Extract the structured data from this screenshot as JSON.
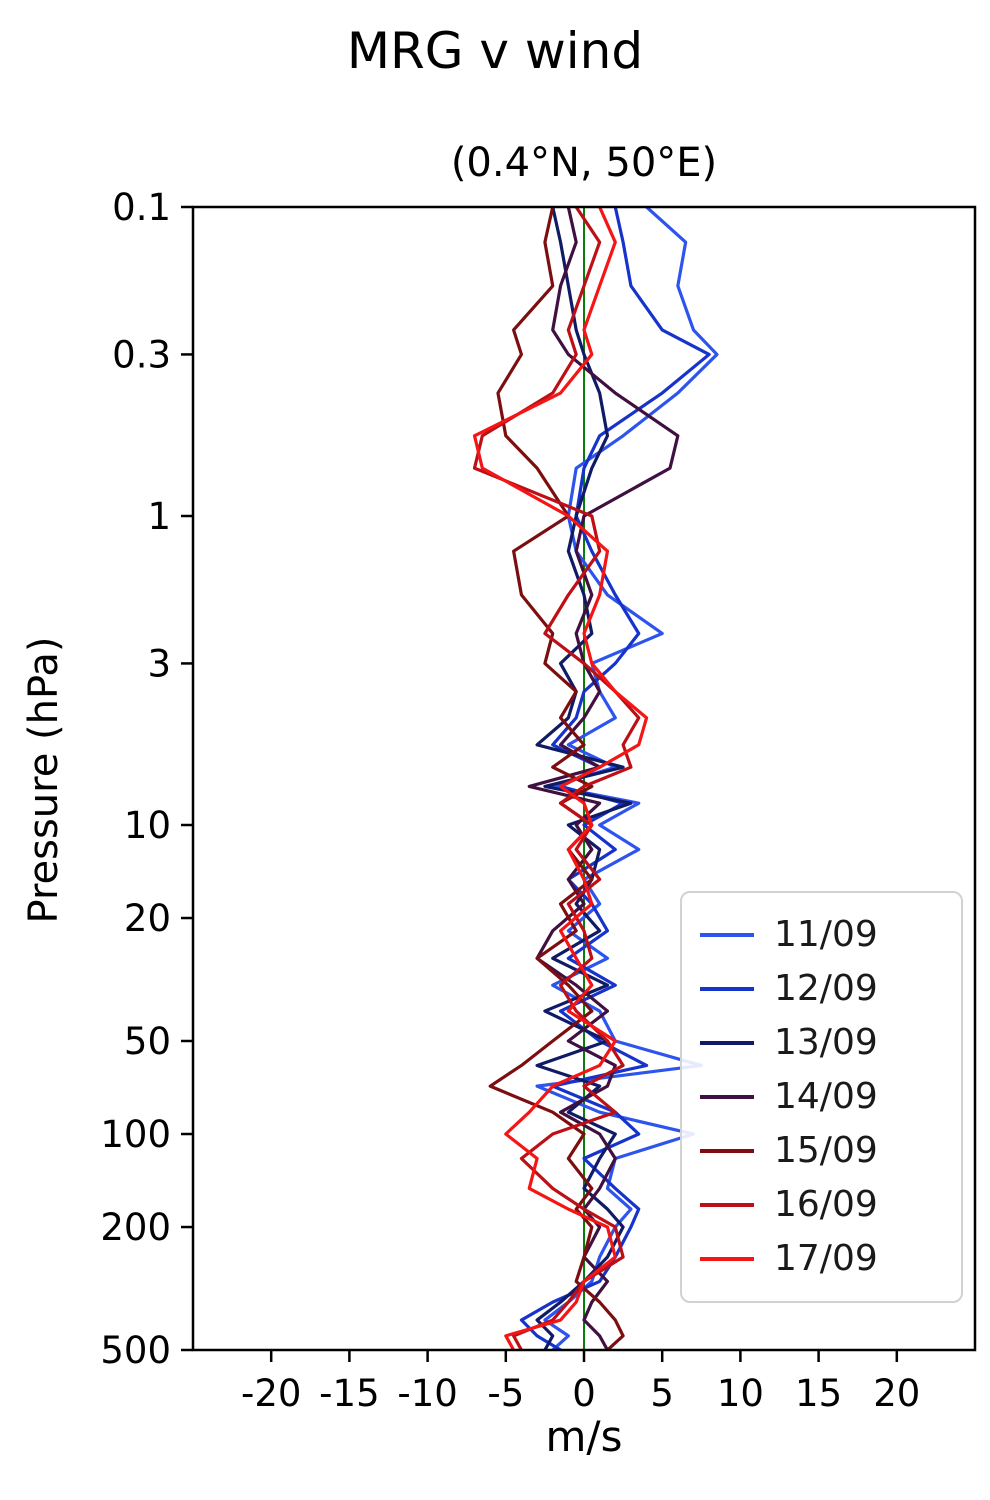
{
  "chart_data": {
    "type": "line",
    "title": "MRG v wind",
    "subtitle": "(0.4°N, 50°E)",
    "xlabel": "m/s",
    "ylabel": "Pressure (hPa)",
    "x_axis": {
      "lim": [
        -25,
        25
      ],
      "ticks": [
        -20,
        -15,
        -10,
        -5,
        0,
        5,
        10,
        15,
        20
      ],
      "tick_labels": [
        "-20",
        "-15",
        "-10",
        "-5",
        "0",
        "5",
        "10",
        "15",
        "20"
      ]
    },
    "y_axis": {
      "scale": "log",
      "lim": [
        0.1,
        500
      ],
      "ticks": [
        0.1,
        0.3,
        1,
        3,
        10,
        20,
        50,
        100,
        200,
        500
      ],
      "tick_labels": [
        "0.1",
        "0.3",
        "1",
        "3",
        "10",
        "20",
        "50",
        "100",
        "200",
        "500"
      ],
      "direction": "increasing-downward"
    },
    "reference_line": {
      "x": 0,
      "color": "#0b7d0b"
    },
    "grid": false,
    "legend": {
      "position": "center-right",
      "labels": [
        "11/09",
        "12/09",
        "13/09",
        "14/09",
        "15/09",
        "16/09",
        "17/09"
      ]
    },
    "pressure_levels": [
      0.1,
      0.13,
      0.18,
      0.25,
      0.3,
      0.4,
      0.55,
      0.7,
      1.0,
      1.3,
      1.8,
      2.4,
      3.0,
      3.7,
      4.5,
      5.5,
      6.5,
      7.5,
      8.5,
      10,
      12,
      15,
      18,
      22,
      27,
      33,
      40,
      50,
      60,
      70,
      85,
      100,
      120,
      150,
      175,
      200,
      250,
      300,
      350,
      400,
      450,
      500
    ],
    "series": [
      {
        "name": "11/09",
        "color": "#2e54ee",
        "values": [
          4.0,
          6.5,
          6.0,
          7.0,
          8.5,
          6.0,
          2.5,
          -0.5,
          -1.0,
          -0.5,
          1.5,
          5.0,
          0.5,
          1.0,
          2.0,
          -1.0,
          2.0,
          -2.0,
          3.5,
          1.0,
          3.5,
          0.0,
          1.0,
          -1.0,
          1.5,
          -2.0,
          1.0,
          2.0,
          7.5,
          -3.0,
          1.0,
          7.0,
          2.0,
          1.5,
          3.0,
          2.0,
          1.0,
          0.5,
          -1.0,
          -2.5,
          -1.0,
          -2.0
        ]
      },
      {
        "name": "12/09",
        "color": "#1633cc",
        "values": [
          2.0,
          2.5,
          3.0,
          5.0,
          8.0,
          5.0,
          1.0,
          0.0,
          -0.5,
          0.5,
          2.0,
          3.5,
          2.0,
          0.0,
          -0.5,
          -2.0,
          1.0,
          -1.5,
          2.5,
          0.0,
          2.0,
          -1.0,
          0.5,
          1.5,
          -1.0,
          2.0,
          -1.5,
          1.0,
          4.0,
          -2.0,
          2.0,
          3.5,
          0.0,
          2.0,
          3.5,
          3.0,
          2.0,
          1.0,
          -2.0,
          -4.0,
          -3.0,
          -1.5
        ]
      },
      {
        "name": "13/09",
        "color": "#101b66",
        "values": [
          -2.0,
          -1.5,
          -1.0,
          -0.5,
          0.0,
          1.0,
          1.5,
          0.5,
          -0.5,
          -1.0,
          0.0,
          0.5,
          -1.5,
          -0.5,
          -1.0,
          -3.0,
          2.5,
          -2.5,
          3.0,
          -1.0,
          1.0,
          0.5,
          -0.5,
          1.0,
          -2.0,
          1.5,
          -2.5,
          1.5,
          -3.0,
          1.0,
          -1.0,
          2.0,
          1.0,
          0.0,
          1.5,
          2.5,
          1.5,
          0.0,
          -1.5,
          -3.0,
          -2.0,
          -2.5
        ]
      },
      {
        "name": "14/09",
        "color": "#401040",
        "values": [
          -1.0,
          -0.5,
          -1.5,
          -2.0,
          -1.0,
          2.0,
          6.0,
          5.5,
          0.0,
          -0.5,
          0.5,
          -0.5,
          0.0,
          1.0,
          0.0,
          -1.5,
          1.0,
          -3.5,
          1.0,
          -0.5,
          0.5,
          -1.0,
          0.0,
          -2.0,
          -3.0,
          -0.5,
          1.5,
          -1.0,
          2.0,
          1.5,
          -1.5,
          1.0,
          2.0,
          1.0,
          0.0,
          1.0,
          0.0,
          1.5,
          0.5,
          0.0,
          1.0,
          1.5
        ]
      },
      {
        "name": "15/09",
        "color": "#7c0e10",
        "values": [
          -2.0,
          -2.5,
          -2.0,
          -4.5,
          -4.0,
          -5.5,
          -5.0,
          -3.0,
          -1.0,
          -4.5,
          -4.0,
          -2.0,
          -2.5,
          -0.5,
          -1.5,
          0.0,
          -2.0,
          0.5,
          -1.5,
          0.5,
          -1.0,
          0.5,
          -1.5,
          -0.5,
          -3.0,
          -1.0,
          0.5,
          -2.0,
          -4.0,
          -6.0,
          -2.0,
          0.0,
          -1.0,
          0.5,
          -0.5,
          0.5,
          0.0,
          -0.5,
          1.0,
          2.0,
          2.5,
          1.5
        ]
      },
      {
        "name": "16/09",
        "color": "#bd1016",
        "values": [
          -0.5,
          1.0,
          0.0,
          -1.0,
          -0.5,
          -2.0,
          -6.5,
          -7.0,
          0.5,
          1.0,
          -1.0,
          -2.5,
          0.0,
          2.0,
          3.5,
          2.5,
          3.0,
          0.0,
          -1.5,
          0.5,
          -0.5,
          1.0,
          -1.0,
          0.0,
          0.5,
          -1.5,
          -0.5,
          1.5,
          2.5,
          0.0,
          2.0,
          -2.0,
          -4.0,
          -2.0,
          0.0,
          2.0,
          2.5,
          0.0,
          -1.0,
          -2.0,
          -4.5,
          -4.0
        ]
      },
      {
        "name": "17/09",
        "color": "#f51515",
        "values": [
          1.0,
          2.0,
          1.0,
          0.0,
          0.5,
          -1.5,
          -7.0,
          -6.5,
          -1.0,
          1.5,
          1.0,
          0.0,
          0.5,
          2.0,
          4.0,
          3.5,
          1.0,
          -1.5,
          0.0,
          0.5,
          -1.0,
          0.0,
          0.5,
          -1.5,
          -0.5,
          0.5,
          -1.0,
          2.0,
          1.0,
          -2.0,
          -3.5,
          -5.0,
          -3.0,
          -3.5,
          -1.0,
          1.5,
          2.0,
          0.0,
          -0.5,
          -1.5,
          -5.0,
          -4.5
        ]
      }
    ]
  }
}
